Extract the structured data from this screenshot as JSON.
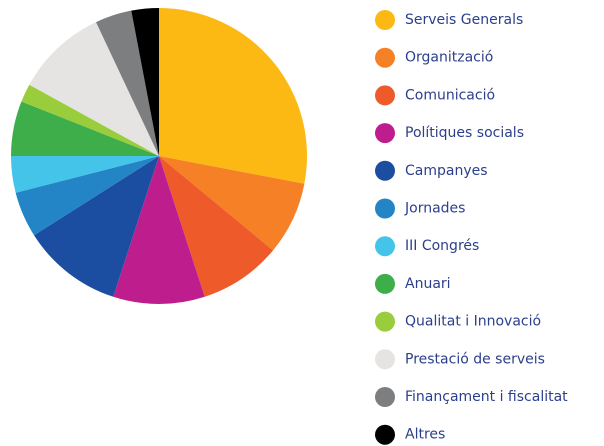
{
  "chart_data": {
    "type": "pie",
    "categories": [
      "Serveis Generals",
      "Organització",
      "Comunicació",
      "Polítiques socials",
      "Campanyes",
      "Jornades",
      "III Congrés",
      "Anuari",
      "Qualitat i Innovació",
      "Prestació de serveis",
      "Finançament i fiscalitat",
      "Altres"
    ],
    "values": [
      28,
      8,
      9,
      10,
      11,
      5,
      4,
      6,
      2,
      10,
      4,
      3
    ],
    "colors": [
      "#fdb913",
      "#f58025",
      "#ef5a2a",
      "#be1e8d",
      "#1b4ea0",
      "#2384c6",
      "#44c4e8",
      "#3dae49",
      "#9acd3c",
      "#e6e3e3",
      "#7d7e80",
      "#000000"
    ],
    "legend": "right"
  }
}
